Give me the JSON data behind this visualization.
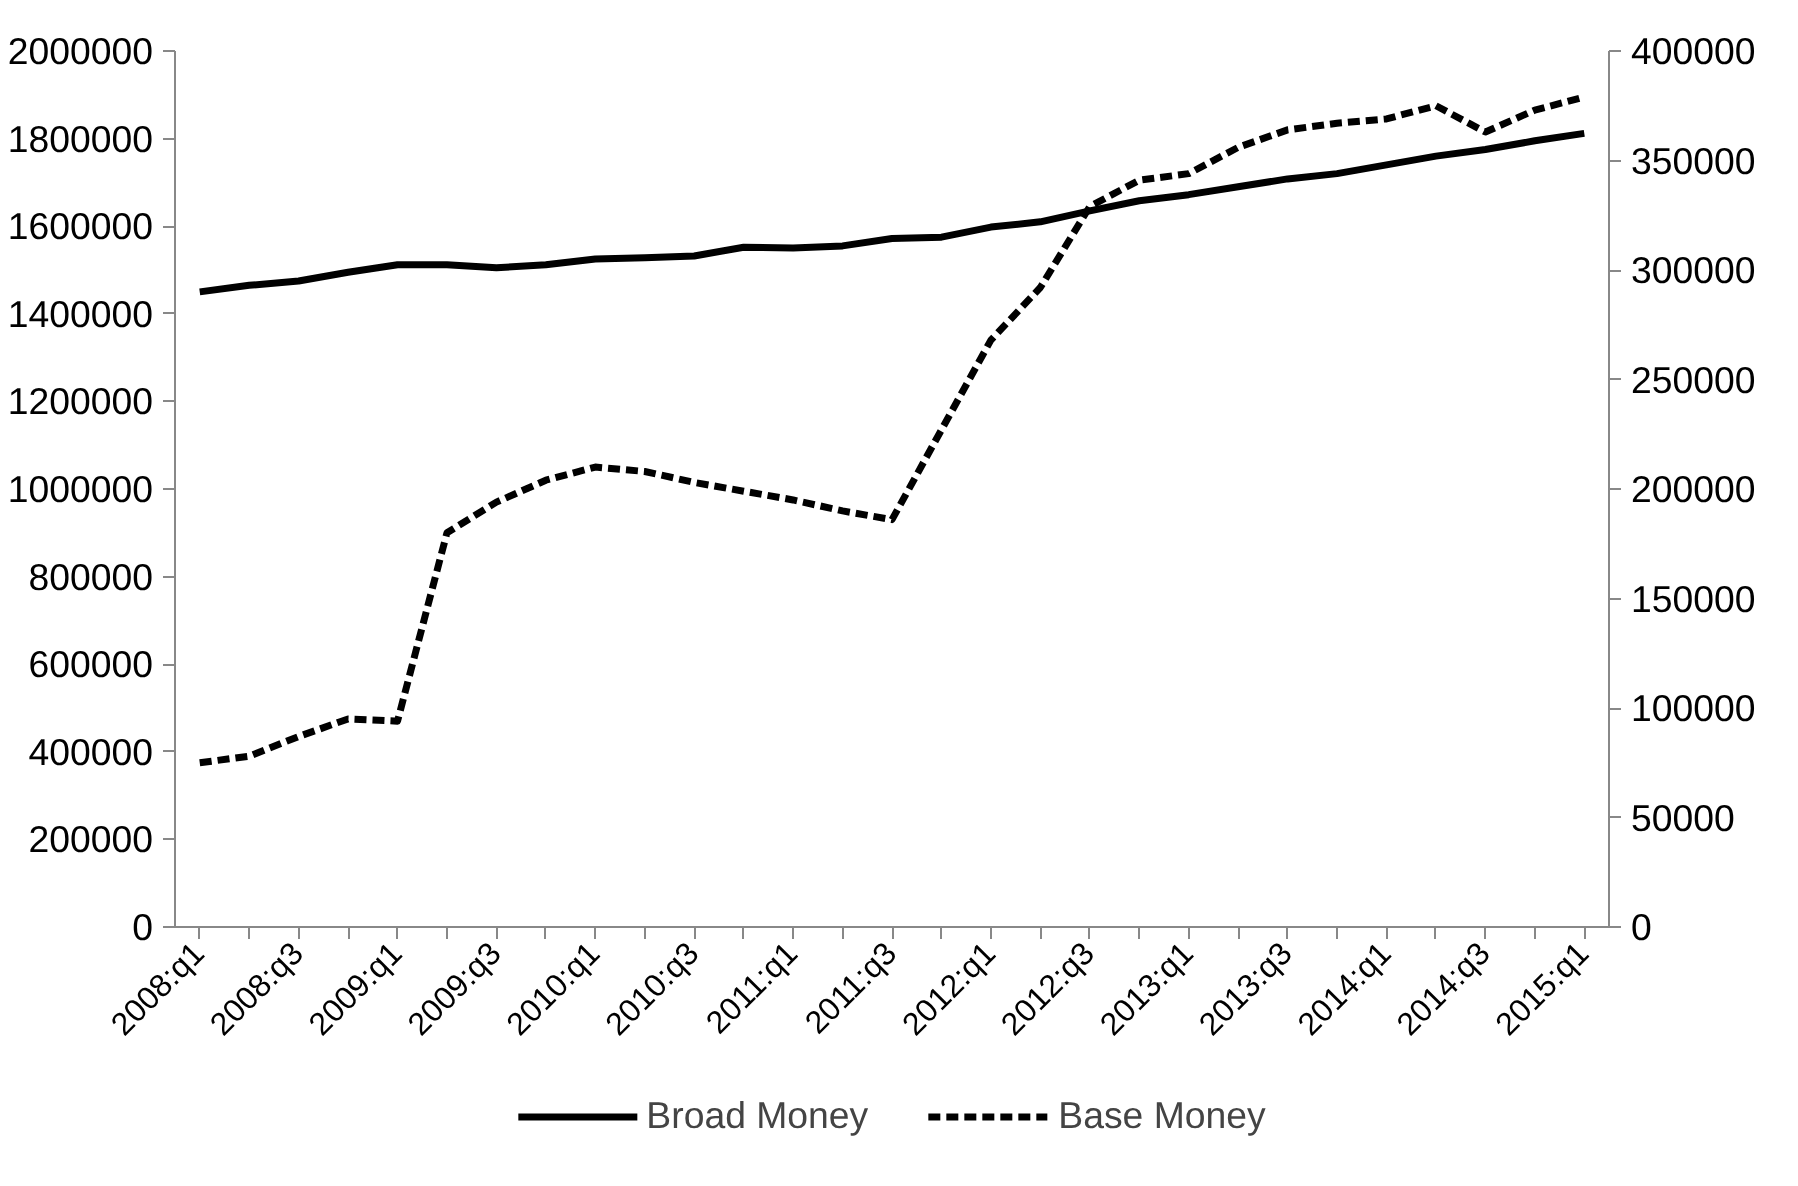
{
  "chart_data": {
    "type": "line",
    "categories": [
      "2008:q1",
      null,
      "2008:q3",
      null,
      "2009:q1",
      null,
      "2009:q3",
      null,
      "2010:q1",
      null,
      "2010:q3",
      null,
      "2011:q1",
      null,
      "2011:q3",
      null,
      "2012:q1",
      null,
      "2012:q3",
      null,
      "2013:q1",
      null,
      "2013:q3",
      null,
      "2014:q1",
      null,
      "2014:q3",
      null,
      "2015:q1"
    ],
    "series": [
      {
        "name": "Broad Money",
        "color": "#000000",
        "line_style": "solid",
        "values": [
          1450000,
          1465000,
          1475000,
          1495000,
          1512000,
          1512000,
          1505000,
          1512000,
          1525000,
          1528000,
          1532000,
          1552000,
          1550000,
          1555000,
          1572000,
          1575000,
          1598000,
          1610000,
          1635000,
          1658000,
          1672000,
          1690000,
          1708000,
          1720000,
          1740000,
          1760000,
          1775000,
          1795000,
          1812000
        ]
      },
      {
        "name": "Base Money",
        "color": "#000000",
        "line_style": "dashed",
        "axis": "y2",
        "values": [
          75000,
          78000,
          87000,
          95000,
          94000,
          180000,
          194000,
          204000,
          210000,
          208000,
          203000,
          199000,
          195000,
          190000,
          186000,
          227000,
          268000,
          292000,
          329000,
          341000,
          344000,
          356000,
          364000,
          367000,
          369000,
          375000,
          363000,
          373000,
          379000
        ]
      }
    ],
    "ylim": [
      0,
      2000000
    ],
    "yticks": [
      0,
      200000,
      400000,
      600000,
      800000,
      1000000,
      1200000,
      1400000,
      1600000,
      1800000,
      2000000
    ],
    "y2lim": [
      0,
      400000
    ],
    "y2ticks": [
      0,
      50000,
      100000,
      150000,
      200000,
      250000,
      300000,
      350000,
      400000
    ],
    "grid": false,
    "legend": "bottom"
  }
}
